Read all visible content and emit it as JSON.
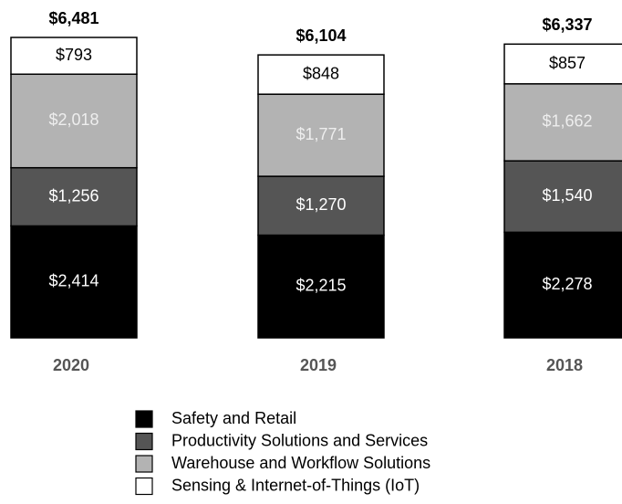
{
  "chart_data": {
    "type": "stacked_bar",
    "categories": [
      "2020",
      "2019",
      "2018"
    ],
    "series": [
      {
        "name": "Safety and Retail",
        "color": "#000000",
        "values": [
          2414,
          2215,
          2278
        ],
        "value_labels": [
          "$2,414",
          "$2,215",
          "$2,278"
        ]
      },
      {
        "name": "Productivity Solutions and Services",
        "color": "#555555",
        "values": [
          1256,
          1270,
          1540
        ],
        "value_labels": [
          "$1,256",
          "$1,270",
          "$1,540"
        ]
      },
      {
        "name": "Warehouse and Workflow Solutions",
        "color": "#b3b3b3",
        "values": [
          2018,
          1771,
          1662
        ],
        "value_labels": [
          "$2,018",
          "$1,771",
          "$1,662"
        ]
      },
      {
        "name": "Sensing & Internet-of-Things (IoT)",
        "color": "#ffffff",
        "values": [
          793,
          848,
          857
        ],
        "value_labels": [
          "$793",
          "$848",
          "$857"
        ]
      }
    ],
    "totals": {
      "values": [
        6481,
        6104,
        6337
      ],
      "value_labels": [
        "$6,481",
        "$6,104",
        "$6,337"
      ]
    }
  }
}
